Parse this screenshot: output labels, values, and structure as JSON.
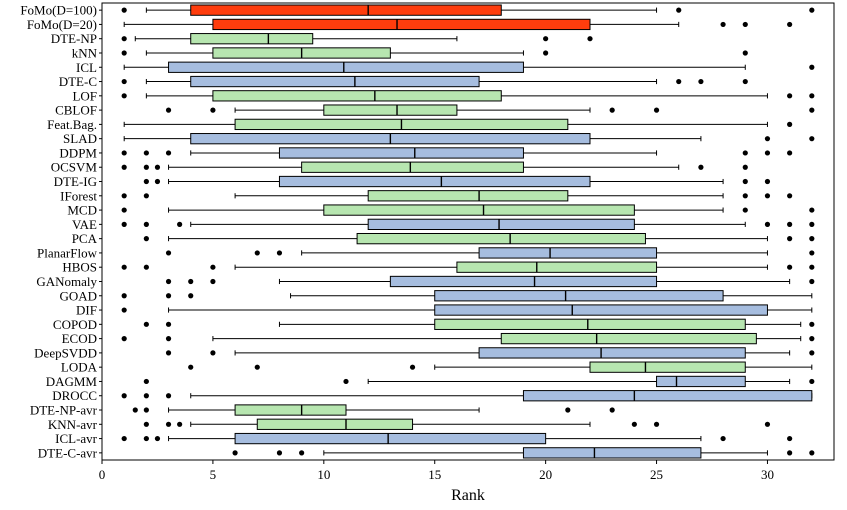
{
  "chart_data": {
    "type": "boxplot",
    "orientation": "horizontal",
    "xlabel": "Rank",
    "xlim": [
      0,
      33
    ],
    "xticks": [
      0,
      5,
      10,
      15,
      20,
      25,
      30
    ],
    "colors": {
      "red": "#ff3d0d",
      "green": "#b7e6b0",
      "blue": "#a6bddf"
    },
    "categories": [
      "FoMo(D=100)",
      "FoMo(D=20)",
      "DTE-NP",
      "kNN",
      "ICL",
      "DTE-C",
      "LOF",
      "CBLOF",
      "Feat.Bag.",
      "SLAD",
      "DDPM",
      "OCSVM",
      "DTE-IG",
      "IForest",
      "MCD",
      "VAE",
      "PCA",
      "PlanarFlow",
      "HBOS",
      "GANomaly",
      "GOAD",
      "DIF",
      "COPOD",
      "ECOD",
      "DeepSVDD",
      "LODA",
      "DAGMM",
      "DROCC",
      "DTE-NP-avr",
      "KNN-avr",
      "ICL-avr",
      "DTE-C-avr"
    ],
    "boxes": [
      {
        "name": "FoMo(D=100)",
        "color": "red",
        "whislo": 2,
        "q1": 4,
        "med": 12,
        "q3": 18,
        "whishi": 25,
        "fliers": [
          1,
          26,
          32
        ]
      },
      {
        "name": "FoMo(D=20)",
        "color": "red",
        "whislo": 1,
        "q1": 5,
        "med": 13.3,
        "q3": 22,
        "whishi": 26,
        "fliers": [
          28,
          29,
          31
        ]
      },
      {
        "name": "DTE-NP",
        "color": "green",
        "whislo": 1.5,
        "q1": 4,
        "med": 7.5,
        "q3": 9.5,
        "whishi": 16,
        "fliers": [
          1,
          20,
          22
        ]
      },
      {
        "name": "kNN",
        "color": "green",
        "whislo": 2,
        "q1": 5,
        "med": 9,
        "q3": 13,
        "whishi": 19,
        "fliers": [
          1,
          20,
          29
        ]
      },
      {
        "name": "ICL",
        "color": "blue",
        "whislo": 1,
        "q1": 3,
        "med": 10.9,
        "q3": 19,
        "whishi": 29,
        "fliers": [
          32
        ]
      },
      {
        "name": "DTE-C",
        "color": "blue",
        "whislo": 2,
        "q1": 4,
        "med": 11.4,
        "q3": 17,
        "whishi": 25,
        "fliers": [
          1,
          26,
          27,
          29
        ]
      },
      {
        "name": "LOF",
        "color": "green",
        "whislo": 2,
        "q1": 5,
        "med": 12.3,
        "q3": 18,
        "whishi": 30,
        "fliers": [
          1,
          31,
          32
        ]
      },
      {
        "name": "CBLOF",
        "color": "green",
        "whislo": 6,
        "q1": 10,
        "med": 13.3,
        "q3": 16,
        "whishi": 22,
        "fliers": [
          3,
          5,
          23,
          25,
          32
        ]
      },
      {
        "name": "Feat.Bag.",
        "color": "green",
        "whislo": 1,
        "q1": 6,
        "med": 13.5,
        "q3": 21,
        "whishi": 30,
        "fliers": [
          31
        ]
      },
      {
        "name": "SLAD",
        "color": "blue",
        "whislo": 1,
        "q1": 4,
        "med": 13,
        "q3": 22,
        "whishi": 27,
        "fliers": [
          30,
          32
        ]
      },
      {
        "name": "DDPM",
        "color": "blue",
        "whislo": 4,
        "q1": 8,
        "med": 14.1,
        "q3": 19,
        "whishi": 25,
        "fliers": [
          1,
          2,
          3,
          29,
          30,
          31
        ]
      },
      {
        "name": "OCSVM",
        "color": "green",
        "whislo": 3,
        "q1": 9,
        "med": 13.9,
        "q3": 19,
        "whishi": 26,
        "fliers": [
          1,
          2,
          2.5,
          27,
          29
        ]
      },
      {
        "name": "DTE-IG",
        "color": "blue",
        "whislo": 3,
        "q1": 8,
        "med": 15.3,
        "q3": 22,
        "whishi": 28,
        "fliers": [
          2,
          2.5,
          29,
          30
        ]
      },
      {
        "name": "IForest",
        "color": "green",
        "whislo": 6,
        "q1": 12,
        "med": 17,
        "q3": 21,
        "whishi": 28,
        "fliers": [
          1,
          2,
          29,
          30,
          31
        ]
      },
      {
        "name": "MCD",
        "color": "green",
        "whislo": 3,
        "q1": 10,
        "med": 17.2,
        "q3": 24,
        "whishi": 28,
        "fliers": [
          1,
          29,
          32
        ]
      },
      {
        "name": "VAE",
        "color": "blue",
        "whislo": 4,
        "q1": 12,
        "med": 17.9,
        "q3": 24,
        "whishi": 29,
        "fliers": [
          1,
          2,
          3.5,
          30,
          31,
          32
        ]
      },
      {
        "name": "PCA",
        "color": "green",
        "whislo": 3,
        "q1": 11.5,
        "med": 18.4,
        "q3": 24.5,
        "whishi": 30,
        "fliers": [
          2,
          31,
          32
        ]
      },
      {
        "name": "PlanarFlow",
        "color": "blue",
        "whislo": 9,
        "q1": 17,
        "med": 20.2,
        "q3": 25,
        "whishi": 30,
        "fliers": [
          3,
          7,
          8,
          32
        ]
      },
      {
        "name": "HBOS",
        "color": "green",
        "whislo": 6,
        "q1": 16,
        "med": 19.6,
        "q3": 25,
        "whishi": 30,
        "fliers": [
          1,
          2,
          5,
          31,
          32
        ]
      },
      {
        "name": "GANomaly",
        "color": "blue",
        "whislo": 8,
        "q1": 13,
        "med": 19.5,
        "q3": 25,
        "whishi": 31,
        "fliers": [
          3,
          4,
          5,
          32
        ]
      },
      {
        "name": "GOAD",
        "color": "blue",
        "whislo": 8.5,
        "q1": 15,
        "med": 20.9,
        "q3": 28,
        "whishi": 32,
        "fliers": [
          1,
          3,
          4
        ]
      },
      {
        "name": "DIF",
        "color": "blue",
        "whislo": 3,
        "q1": 15,
        "med": 21.2,
        "q3": 30,
        "whishi": 32,
        "fliers": [
          1
        ]
      },
      {
        "name": "COPOD",
        "color": "green",
        "whislo": 8,
        "q1": 15,
        "med": 21.9,
        "q3": 29,
        "whishi": 31.5,
        "fliers": [
          2,
          3,
          32
        ]
      },
      {
        "name": "ECOD",
        "color": "green",
        "whislo": 5,
        "q1": 18,
        "med": 22.3,
        "q3": 29.5,
        "whishi": 31.5,
        "fliers": [
          1,
          3,
          32
        ]
      },
      {
        "name": "DeepSVDD",
        "color": "blue",
        "whislo": 6,
        "q1": 17,
        "med": 22.5,
        "q3": 29,
        "whishi": 31,
        "fliers": [
          3,
          5,
          32
        ]
      },
      {
        "name": "LODA",
        "color": "green",
        "whislo": 15,
        "q1": 22,
        "med": 24.5,
        "q3": 29,
        "whishi": 32,
        "fliers": [
          4,
          7,
          14
        ]
      },
      {
        "name": "DAGMM",
        "color": "blue",
        "whislo": 12,
        "q1": 25,
        "med": 25.9,
        "q3": 29,
        "whishi": 31,
        "fliers": [
          2,
          11,
          32
        ]
      },
      {
        "name": "DROCC",
        "color": "blue",
        "whislo": 4,
        "q1": 19,
        "med": 24,
        "q3": 32,
        "whishi": 32,
        "fliers": [
          1,
          2,
          3
        ]
      },
      {
        "name": "DTE-NP-avr",
        "color": "green",
        "whislo": 3,
        "q1": 6,
        "med": 9,
        "q3": 11,
        "whishi": 17,
        "fliers": [
          1.5,
          2,
          21,
          23
        ]
      },
      {
        "name": "KNN-avr",
        "color": "green",
        "whislo": 4,
        "q1": 7,
        "med": 11,
        "q3": 14,
        "whishi": 22,
        "fliers": [
          2,
          3,
          3.5,
          24,
          25,
          30
        ]
      },
      {
        "name": "ICL-avr",
        "color": "blue",
        "whislo": 3,
        "q1": 6,
        "med": 12.9,
        "q3": 20,
        "whishi": 27,
        "fliers": [
          1,
          2,
          2.5,
          28,
          31
        ]
      },
      {
        "name": "DTE-C-avr",
        "color": "blue",
        "whislo": 10,
        "q1": 19,
        "med": 22.2,
        "q3": 27,
        "whishi": 30,
        "fliers": [
          6,
          8,
          9,
          31,
          32
        ]
      }
    ]
  }
}
